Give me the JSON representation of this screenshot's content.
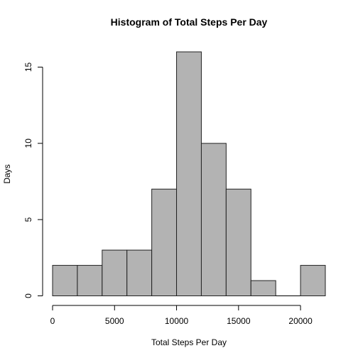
{
  "chart_data": {
    "type": "bar",
    "title": "Histogram of Total Steps Per Day",
    "xlabel": "Total Steps Per Day",
    "ylabel": "Days",
    "bins": [
      {
        "from": 0,
        "to": 2000,
        "count": 2
      },
      {
        "from": 2000,
        "to": 4000,
        "count": 2
      },
      {
        "from": 4000,
        "to": 6000,
        "count": 3
      },
      {
        "from": 6000,
        "to": 8000,
        "count": 3
      },
      {
        "from": 8000,
        "to": 10000,
        "count": 7
      },
      {
        "from": 10000,
        "to": 12000,
        "count": 16
      },
      {
        "from": 12000,
        "to": 14000,
        "count": 10
      },
      {
        "from": 14000,
        "to": 16000,
        "count": 7
      },
      {
        "from": 16000,
        "to": 18000,
        "count": 1
      },
      {
        "from": 18000,
        "to": 20000,
        "count": 0
      },
      {
        "from": 20000,
        "to": 22000,
        "count": 2
      }
    ],
    "xlim": [
      0,
      22000
    ],
    "ylim": [
      0,
      16
    ],
    "x_ticks": [
      0,
      5000,
      10000,
      15000,
      20000
    ],
    "x_tick_labels": [
      "0",
      "5000",
      "10000",
      "15000",
      "20000"
    ],
    "y_ticks": [
      0,
      5,
      10,
      15
    ],
    "y_tick_labels": [
      "0",
      "5",
      "10",
      "15"
    ],
    "bar_color": "#b3b3b3",
    "grid": false,
    "legend": false
  }
}
